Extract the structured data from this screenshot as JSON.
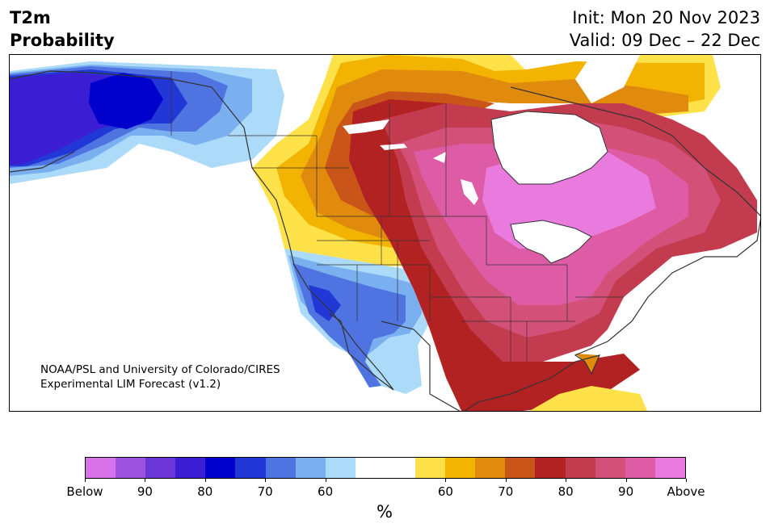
{
  "header": {
    "title_line1": "T2m",
    "title_line2": "Probability",
    "init_text": "Init: Mon 20 Nov 2023",
    "valid_text": "Valid: 09 Dec – 22 Dec"
  },
  "map": {
    "credit_line1": "NOAA/PSL and University of Colorado/CIRES",
    "credit_line2": "Experimental LIM Forecast (v1.2)"
  },
  "colorbar": {
    "unit_label": "%",
    "tick_labels": [
      "Below",
      "90",
      "80",
      "70",
      "60",
      "60",
      "70",
      "80",
      "90",
      "Above"
    ],
    "colors": [
      "#d972e8",
      "#9c52dd",
      "#6a36d6",
      "#3b1ed4",
      "#0000cd",
      "#2238d6",
      "#4f74e2",
      "#7ab0ef",
      "#acdaf9",
      "#ffffff",
      "#ffffff",
      "#ffe14a",
      "#f2b400",
      "#e08a0e",
      "#c95518",
      "#b22222",
      "#c23b4e",
      "#d35079",
      "#dd5ca5",
      "#e87bdd"
    ]
  }
}
